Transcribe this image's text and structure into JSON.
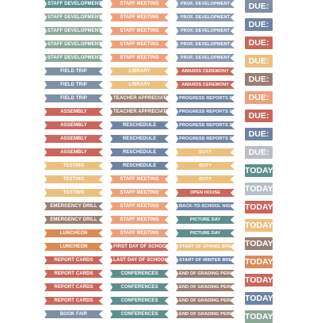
{
  "colors": {
    "sage": "#8BA897",
    "peach": "#ECA07C",
    "slate": "#8A9AB2",
    "brown": "#9A7E72",
    "sand": "#EBC07F",
    "rust": "#C9675C",
    "blue": "#6F84A4",
    "teal": "#5F8E8E",
    "mauve": "#A99AA8",
    "orange": "#DC8A57",
    "steel": "#7F90A6",
    "grey": "#B9BFC9"
  },
  "col1": [
    {
      "label": "STAFF DEVELOPMENT",
      "color": "teal"
    },
    {
      "label": "STAFF DEVELOPMENT",
      "color": "sage"
    },
    {
      "label": "STAFF DEVELOPMENT",
      "color": "sage"
    },
    {
      "label": "STAFF DEVELOPMENT",
      "color": "sage"
    },
    {
      "label": "STAFF DEVELOPMENT",
      "color": "sage"
    },
    {
      "label": "FIELD TRIP",
      "color": "steel"
    },
    {
      "label": "FIELD TRIP",
      "color": "steel"
    },
    {
      "label": "FIELD TRIP",
      "color": "steel"
    },
    {
      "label": "ASSEMBLY",
      "color": "rust"
    },
    {
      "label": "ASSEMBLY",
      "color": "rust"
    },
    {
      "label": "ASSEMBLY",
      "color": "rust"
    },
    {
      "label": "ASSEMBLY",
      "color": "rust"
    },
    {
      "label": "TESTING",
      "color": "sand"
    },
    {
      "label": "TESTING",
      "color": "sand"
    },
    {
      "label": "TESTING",
      "color": "sand"
    },
    {
      "label": "EMERGENCY DRILL",
      "color": "brown"
    },
    {
      "label": "EMERGENCY DRILL",
      "color": "brown"
    },
    {
      "label": "LUNCHEON",
      "color": "orange"
    },
    {
      "label": "LUNCHEON",
      "color": "orange"
    },
    {
      "label": "REPORT CARDS",
      "color": "rust"
    },
    {
      "label": "REPORT CARDS",
      "color": "rust"
    },
    {
      "label": "REPORT CARDS",
      "color": "rust"
    },
    {
      "label": "REPORT CARDS",
      "color": "rust"
    },
    {
      "label": "BOOK FAIR",
      "color": "steel"
    }
  ],
  "col2": [
    {
      "label": "STAFF MEETING",
      "color": "peach"
    },
    {
      "label": "STAFF MEETING",
      "color": "peach"
    },
    {
      "label": "STAFF MEETING",
      "color": "peach"
    },
    {
      "label": "STAFF MEETING",
      "color": "peach"
    },
    {
      "label": "STAFF MEETING",
      "color": "peach"
    },
    {
      "label": "LIBRARY",
      "color": "sand"
    },
    {
      "label": "LIBRARY",
      "color": "sand"
    },
    {
      "label": "TEACHER APPRECIATION",
      "color": "brown"
    },
    {
      "label": "TEACHER APPRECIATION",
      "color": "brown"
    },
    {
      "label": "RESCHEDULE",
      "color": "blue"
    },
    {
      "label": "RESCHEDULE",
      "color": "blue"
    },
    {
      "label": "RESCHEDULE",
      "color": "blue"
    },
    {
      "label": "RESCHEDULE",
      "color": "blue"
    },
    {
      "label": "STAFF MEETING",
      "color": "peach"
    },
    {
      "label": "STAFF MEETING",
      "color": "peach"
    },
    {
      "label": "STAFF MEETING",
      "color": "peach"
    },
    {
      "label": "STAFF MEETING",
      "color": "peach"
    },
    {
      "label": "STAFF MEETING",
      "color": "peach"
    },
    {
      "label": "FIRST DAY OF SCHOOL",
      "color": "rust"
    },
    {
      "label": "LAST DAY OF SCHOOL",
      "color": "rust"
    },
    {
      "label": "CONFERENCES",
      "color": "teal"
    },
    {
      "label": "CONFERENCES",
      "color": "teal"
    },
    {
      "label": "CONFERENCES",
      "color": "teal"
    },
    {
      "label": "CONFERENCES",
      "color": "teal"
    }
  ],
  "col3": [
    {
      "label": "PROF. DEVELOPMENT",
      "color": "slate"
    },
    {
      "label": "PROF. DEVELOPMENT",
      "color": "slate"
    },
    {
      "label": "PROF. DEVELOPMENT",
      "color": "slate"
    },
    {
      "label": "PROF. DEVELOPMENT",
      "color": "slate"
    },
    {
      "label": "PROF. DEVELOPMENT",
      "color": "slate"
    },
    {
      "label": "AWARDS CEREMONY",
      "color": "rust"
    },
    {
      "label": "AWARDS CEREMONY",
      "color": "rust"
    },
    {
      "label": "PROGRESS REPORTS DUE",
      "color": "blue"
    },
    {
      "label": "PROGRESS REPORTS DUE",
      "color": "blue"
    },
    {
      "label": "PROGRESS REPORTS DUE",
      "color": "blue"
    },
    {
      "label": "PROGRESS REPORTS DUE",
      "color": "blue"
    },
    {
      "label": "DUTY",
      "color": "sand"
    },
    {
      "label": "DUTY",
      "color": "sand"
    },
    {
      "label": "DUTY",
      "color": "sand"
    },
    {
      "label": "OPEN HOUSE",
      "color": "rust"
    },
    {
      "label": "BACK-TO-SCHOOL NIGHT",
      "color": "blue"
    },
    {
      "label": "PICTURE DAY",
      "color": "teal"
    },
    {
      "label": "PICTURE DAY",
      "color": "teal"
    },
    {
      "label": "START OF SPRING BREAK",
      "color": "sand"
    },
    {
      "label": "START OF WINTER BREAK",
      "color": "blue"
    },
    {
      "label": "END OF GRADING PERIOD",
      "color": "brown"
    },
    {
      "label": "END OF GRADING PERIOD",
      "color": "brown"
    },
    {
      "label": "END OF GRADING PERIOD",
      "color": "brown"
    },
    {
      "label": "END OF GRADING PERIOD",
      "color": "brown"
    }
  ],
  "col4": [
    {
      "label": "DUE:",
      "color": "steel"
    },
    {
      "label": "DUE:",
      "color": "blue"
    },
    {
      "label": "DUE:",
      "color": "rust"
    },
    {
      "label": "DUE:",
      "color": "sand"
    },
    {
      "label": "DUE:",
      "color": "brown"
    },
    {
      "label": "DUE:",
      "color": "peach"
    },
    {
      "label": "DUE:",
      "color": "rust"
    },
    {
      "label": "DUE:",
      "color": "blue"
    },
    {
      "label": "DUE:",
      "color": "grey"
    },
    {
      "label": "TODAY",
      "color": "teal"
    },
    {
      "label": "TODAY",
      "color": "grey"
    },
    {
      "label": "TODAY",
      "color": "rust"
    },
    {
      "label": "TODAY",
      "color": "sand"
    },
    {
      "label": "TODAY",
      "color": "brown"
    },
    {
      "label": "TODAY",
      "color": "orange"
    },
    {
      "label": "TODAY",
      "color": "rust"
    },
    {
      "label": "TODAY",
      "color": "blue"
    },
    {
      "label": "TODAY",
      "color": "sage"
    }
  ]
}
